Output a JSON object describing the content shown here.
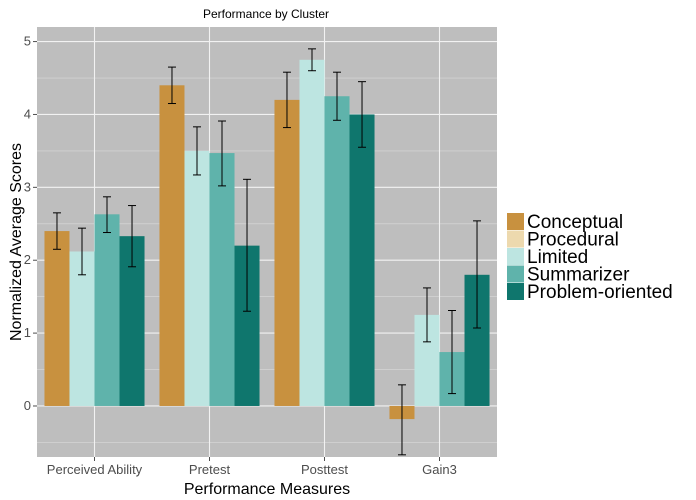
{
  "chart_data": {
    "type": "bar",
    "title": "Performance by Cluster",
    "xlabel": "Performance Measures",
    "ylabel": "Normalized Average Scores",
    "ylim": [
      -0.7,
      5.2
    ],
    "yticks": [
      0,
      1,
      2,
      3,
      4,
      5
    ],
    "grid": true,
    "legend_position": "right",
    "categories": [
      "Perceived Ability",
      "Pretest",
      "Posttest",
      "Gain3"
    ],
    "series": [
      {
        "name": "Conceptual",
        "color": "#C8913F",
        "values": [
          2.4,
          4.4,
          4.2,
          -0.18
        ],
        "err_low": [
          2.15,
          4.15,
          3.82,
          -0.67
        ],
        "err_high": [
          2.65,
          4.65,
          4.58,
          0.29
        ]
      },
      {
        "name": "Procedural",
        "color": "#EDD9AE",
        "values": [
          null,
          null,
          null,
          null
        ],
        "err_low": [
          null,
          null,
          null,
          null
        ],
        "err_high": [
          null,
          null,
          null,
          null
        ]
      },
      {
        "name": "Limited",
        "color": "#BDE5E1",
        "values": [
          2.12,
          3.5,
          4.75,
          1.25
        ],
        "err_low": [
          1.8,
          3.17,
          4.6,
          0.88
        ],
        "err_high": [
          2.44,
          3.83,
          4.9,
          1.62
        ]
      },
      {
        "name": "Summarizer",
        "color": "#5FB3AB",
        "values": [
          2.63,
          3.47,
          4.25,
          0.74
        ],
        "err_low": [
          2.38,
          3.02,
          3.92,
          0.17
        ],
        "err_high": [
          2.87,
          3.91,
          4.58,
          1.31
        ]
      },
      {
        "name": "Problem-oriented",
        "color": "#0F766D",
        "values": [
          2.33,
          2.2,
          4.0,
          1.8
        ],
        "err_low": [
          1.91,
          1.3,
          3.55,
          1.07
        ],
        "err_high": [
          2.75,
          3.11,
          4.45,
          2.54
        ]
      }
    ],
    "bar_order": [
      0,
      2,
      3,
      4
    ]
  }
}
